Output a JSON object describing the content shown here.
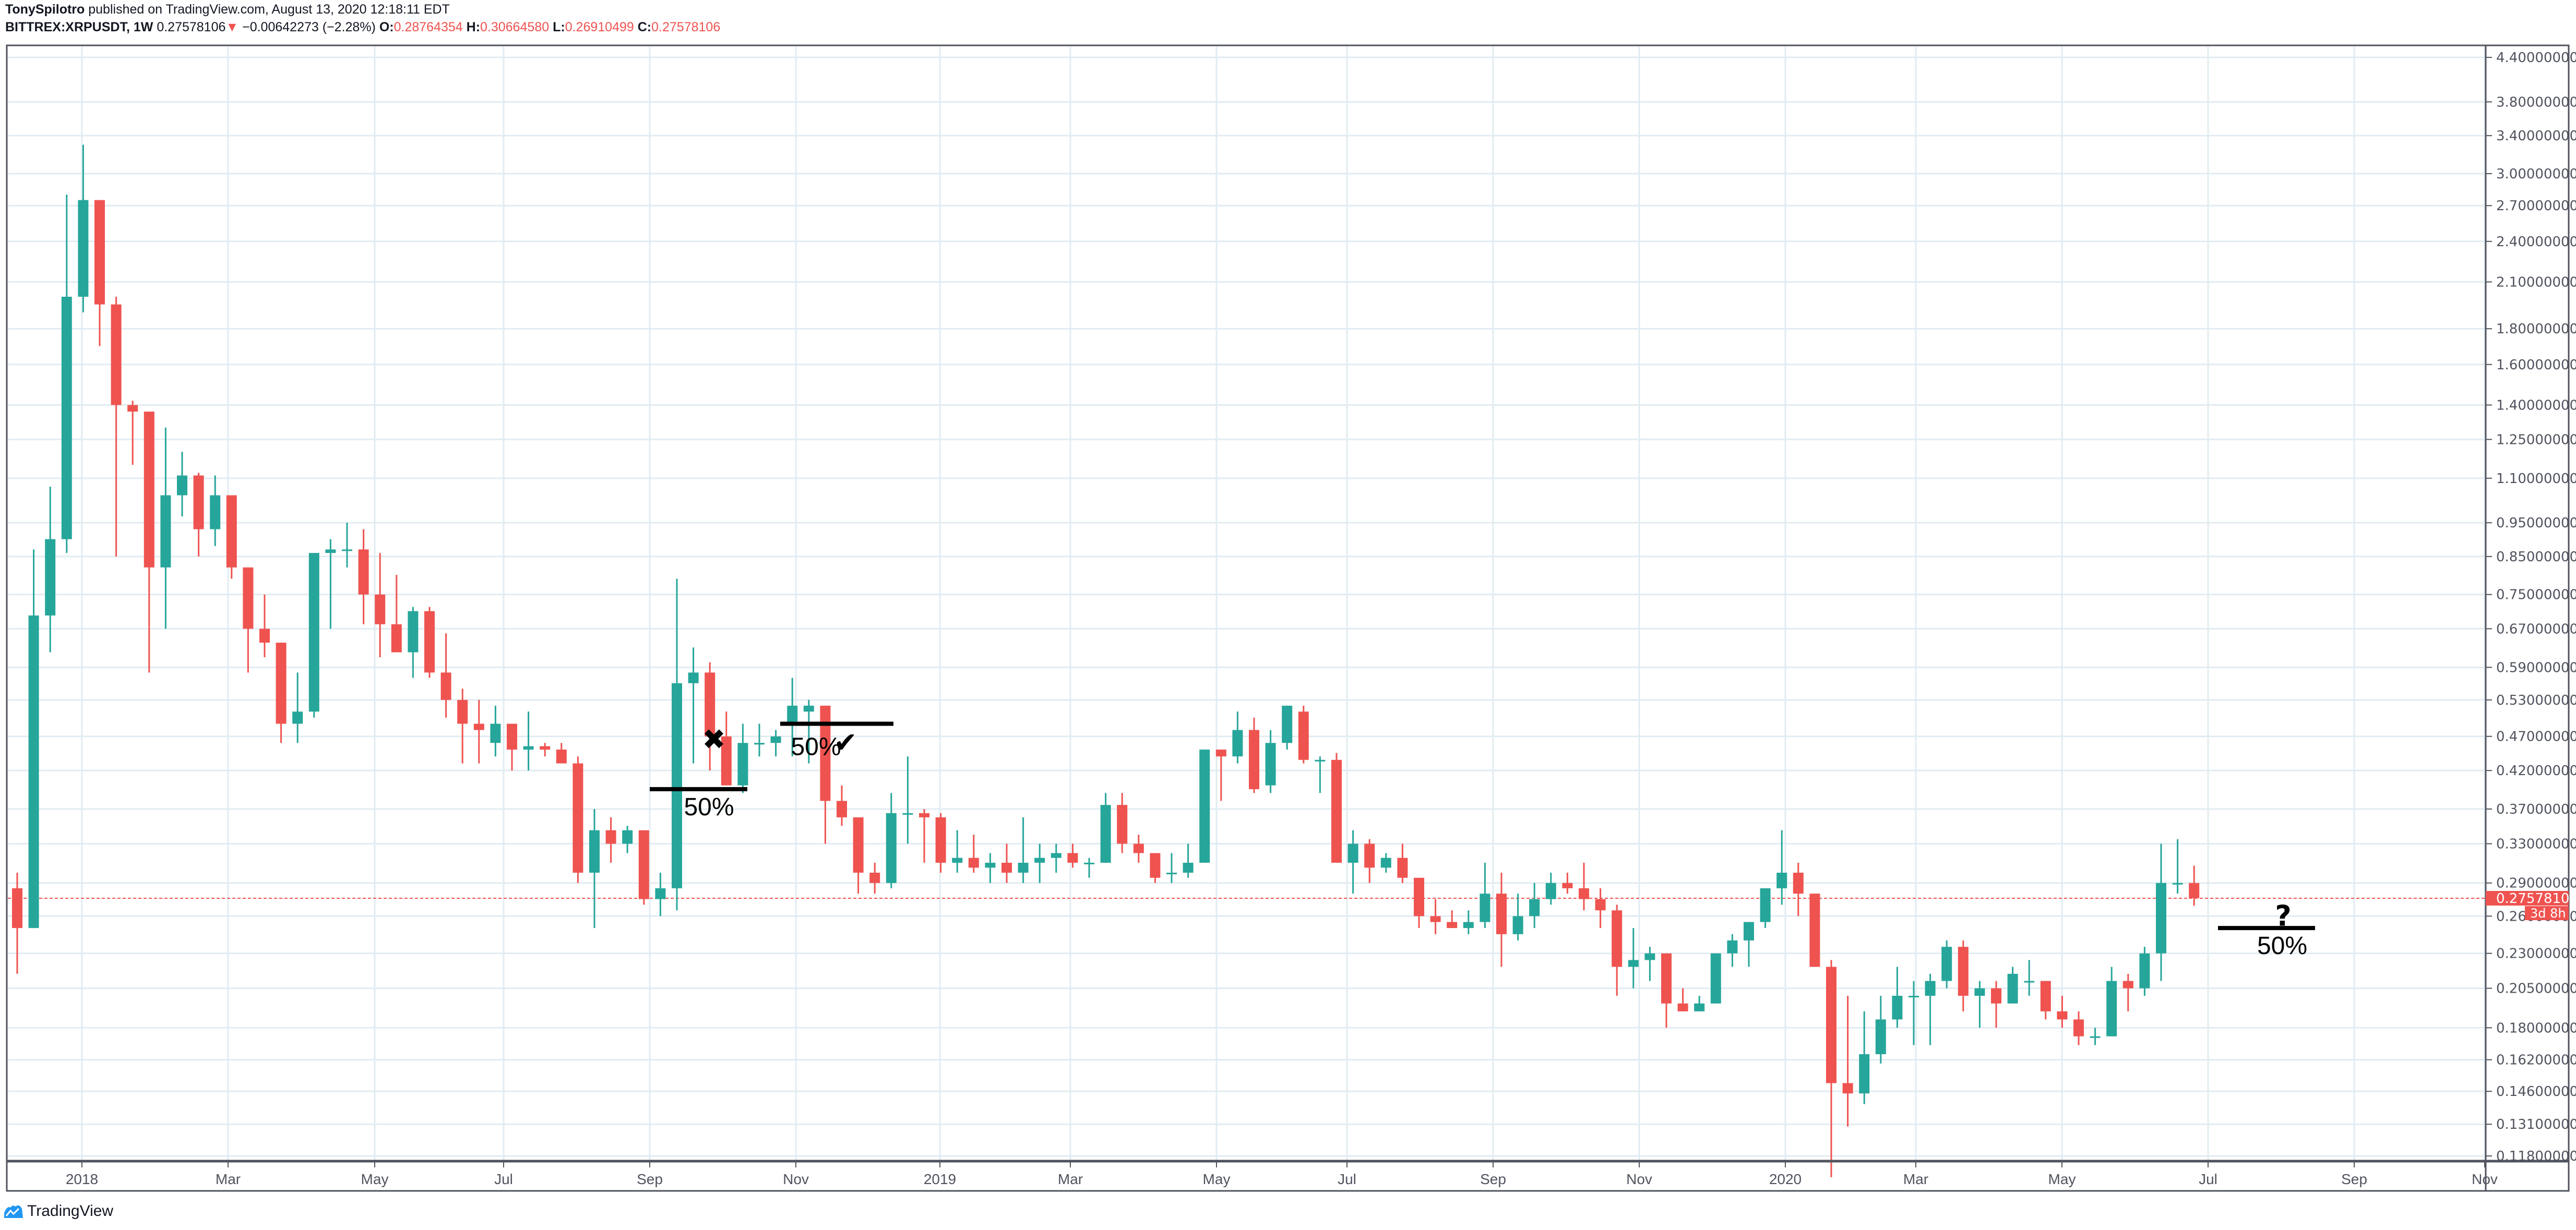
{
  "header": {
    "author": "TonySpilotro",
    "published": "published on TradingView.com, August 13, 2020 12:18:11 EDT",
    "symbol": "BITTREX:XRPUSDT, 1W",
    "last": "0.27578106",
    "change_arrow": "▼",
    "change": "−0.00642273 (−2.28%)",
    "open_label": "O:",
    "open": "0.28764354",
    "high_label": "H:",
    "high": "0.30664580",
    "low_label": "L:",
    "low": "0.26910499",
    "close_label": "C:",
    "close": "0.27578106"
  },
  "branding": {
    "logo_icon": "tradingview-logo-icon",
    "label": "TradingView"
  },
  "colors": {
    "up": "#26a69a",
    "down": "#ef5350",
    "grid": "#e1ecf2",
    "axis": "#50535e",
    "text": "#131722",
    "brand": "#2196f3"
  },
  "price_label": {
    "value": "0.27578106",
    "countdown": "3d 8h"
  },
  "chart_data": {
    "type": "candlestick",
    "title": "BITTREX:XRPUSDT, 1W",
    "scale": "log",
    "ylim": [
      0.118,
      4.4
    ],
    "y_ticks": [
      "4.40000000",
      "3.80000000",
      "3.40000000",
      "3.00000000",
      "2.70000000",
      "2.40000000",
      "2.10000000",
      "1.80000000",
      "1.60000000",
      "1.40000000",
      "1.25000000",
      "1.10000000",
      "0.95000000",
      "0.85000000",
      "0.75000000",
      "0.67000000",
      "0.59000000",
      "0.53000000",
      "0.47000000",
      "0.42000000",
      "0.37000000",
      "0.33000000",
      "0.29000000",
      "0.26000000",
      "0.23000000",
      "0.20500000",
      "0.18000000",
      "0.16200000",
      "0.14600000",
      "0.13100000",
      "0.11800000"
    ],
    "x_ticks": [
      {
        "label": "2018",
        "x": 157
      },
      {
        "label": "Mar",
        "x": 437
      },
      {
        "label": "May",
        "x": 718
      },
      {
        "label": "Jul",
        "x": 965
      },
      {
        "label": "Sep",
        "x": 1245
      },
      {
        "label": "Nov",
        "x": 1525
      },
      {
        "label": "2019",
        "x": 1801
      },
      {
        "label": "Mar",
        "x": 2051
      },
      {
        "label": "May",
        "x": 2331
      },
      {
        "label": "Jul",
        "x": 2581
      },
      {
        "label": "Sep",
        "x": 2861
      },
      {
        "label": "Nov",
        "x": 3141
      },
      {
        "label": "2020",
        "x": 3421
      },
      {
        "label": "Mar",
        "x": 3671
      },
      {
        "label": "May",
        "x": 3951
      },
      {
        "label": "Jul",
        "x": 4231
      },
      {
        "label": "Sep",
        "x": 4511
      },
      {
        "label": "Nov",
        "x": 4761
      }
    ],
    "candles": [
      [
        0.285,
        0.3,
        0.215,
        0.25
      ],
      [
        0.25,
        0.87,
        0.25,
        0.7
      ],
      [
        0.7,
        1.07,
        0.62,
        0.9
      ],
      [
        0.9,
        2.8,
        0.86,
        2.0
      ],
      [
        2.0,
        3.3,
        1.9,
        2.75
      ],
      [
        2.75,
        2.75,
        1.7,
        1.95
      ],
      [
        1.95,
        2.0,
        0.85,
        1.4
      ],
      [
        1.4,
        1.42,
        1.15,
        1.37
      ],
      [
        1.37,
        1.37,
        0.58,
        0.82
      ],
      [
        0.82,
        1.3,
        0.67,
        1.04
      ],
      [
        1.04,
        1.2,
        0.97,
        1.11
      ],
      [
        1.11,
        1.12,
        0.85,
        0.93
      ],
      [
        0.93,
        1.11,
        0.88,
        1.04
      ],
      [
        1.04,
        1.04,
        0.79,
        0.82
      ],
      [
        0.82,
        0.82,
        0.58,
        0.67
      ],
      [
        0.67,
        0.75,
        0.61,
        0.64
      ],
      [
        0.64,
        0.64,
        0.46,
        0.49
      ],
      [
        0.49,
        0.58,
        0.46,
        0.51
      ],
      [
        0.51,
        0.72,
        0.5,
        0.86
      ],
      [
        0.86,
        0.9,
        0.67,
        0.87
      ],
      [
        0.87,
        0.95,
        0.82,
        0.87
      ],
      [
        0.87,
        0.93,
        0.68,
        0.75
      ],
      [
        0.75,
        0.86,
        0.61,
        0.68
      ],
      [
        0.68,
        0.8,
        0.64,
        0.62
      ],
      [
        0.62,
        0.72,
        0.57,
        0.71
      ],
      [
        0.71,
        0.72,
        0.57,
        0.58
      ],
      [
        0.58,
        0.66,
        0.5,
        0.53
      ],
      [
        0.53,
        0.55,
        0.43,
        0.49
      ],
      [
        0.49,
        0.53,
        0.43,
        0.48
      ],
      [
        0.46,
        0.52,
        0.44,
        0.49
      ],
      [
        0.49,
        0.49,
        0.42,
        0.45
      ],
      [
        0.45,
        0.51,
        0.42,
        0.455
      ],
      [
        0.455,
        0.46,
        0.44,
        0.45
      ],
      [
        0.45,
        0.46,
        0.43,
        0.43
      ],
      [
        0.43,
        0.44,
        0.29,
        0.3
      ],
      [
        0.3,
        0.37,
        0.25,
        0.345
      ],
      [
        0.345,
        0.36,
        0.31,
        0.33
      ],
      [
        0.33,
        0.35,
        0.32,
        0.345
      ],
      [
        0.345,
        0.345,
        0.27,
        0.275
      ],
      [
        0.275,
        0.3,
        0.26,
        0.285
      ],
      [
        0.285,
        0.79,
        0.265,
        0.56
      ],
      [
        0.56,
        0.63,
        0.43,
        0.58
      ],
      [
        0.58,
        0.6,
        0.42,
        0.47
      ],
      [
        0.47,
        0.51,
        0.4,
        0.4
      ],
      [
        0.4,
        0.49,
        0.39,
        0.46
      ],
      [
        0.46,
        0.49,
        0.44,
        0.46
      ],
      [
        0.46,
        0.48,
        0.44,
        0.47
      ],
      [
        0.49,
        0.57,
        0.44,
        0.52
      ],
      [
        0.51,
        0.53,
        0.43,
        0.52
      ],
      [
        0.52,
        0.52,
        0.33,
        0.38
      ],
      [
        0.38,
        0.4,
        0.35,
        0.36
      ],
      [
        0.36,
        0.36,
        0.28,
        0.3
      ],
      [
        0.3,
        0.31,
        0.28,
        0.29
      ],
      [
        0.29,
        0.39,
        0.285,
        0.365
      ],
      [
        0.365,
        0.44,
        0.33,
        0.365
      ],
      [
        0.365,
        0.37,
        0.31,
        0.36
      ],
      [
        0.36,
        0.365,
        0.3,
        0.31
      ],
      [
        0.31,
        0.345,
        0.3,
        0.315
      ],
      [
        0.315,
        0.34,
        0.3,
        0.305
      ],
      [
        0.305,
        0.32,
        0.29,
        0.31
      ],
      [
        0.31,
        0.33,
        0.29,
        0.3
      ],
      [
        0.3,
        0.36,
        0.29,
        0.31
      ],
      [
        0.31,
        0.33,
        0.29,
        0.315
      ],
      [
        0.315,
        0.33,
        0.3,
        0.32
      ],
      [
        0.32,
        0.33,
        0.305,
        0.31
      ],
      [
        0.31,
        0.315,
        0.295,
        0.31
      ],
      [
        0.31,
        0.39,
        0.31,
        0.375
      ],
      [
        0.375,
        0.39,
        0.32,
        0.33
      ],
      [
        0.33,
        0.34,
        0.31,
        0.32
      ],
      [
        0.32,
        0.32,
        0.29,
        0.295
      ],
      [
        0.3,
        0.32,
        0.29,
        0.3
      ],
      [
        0.3,
        0.33,
        0.295,
        0.31
      ],
      [
        0.31,
        0.45,
        0.31,
        0.45
      ],
      [
        0.45,
        0.45,
        0.38,
        0.44
      ],
      [
        0.44,
        0.51,
        0.43,
        0.48
      ],
      [
        0.48,
        0.5,
        0.39,
        0.395
      ],
      [
        0.4,
        0.48,
        0.39,
        0.46
      ],
      [
        0.46,
        0.52,
        0.45,
        0.52
      ],
      [
        0.51,
        0.52,
        0.43,
        0.435
      ],
      [
        0.435,
        0.44,
        0.39,
        0.435
      ],
      [
        0.435,
        0.445,
        0.31,
        0.31
      ],
      [
        0.31,
        0.345,
        0.28,
        0.33
      ],
      [
        0.33,
        0.335,
        0.29,
        0.305
      ],
      [
        0.305,
        0.32,
        0.3,
        0.315
      ],
      [
        0.315,
        0.33,
        0.29,
        0.295
      ],
      [
        0.295,
        0.295,
        0.25,
        0.26
      ],
      [
        0.26,
        0.275,
        0.245,
        0.255
      ],
      [
        0.255,
        0.265,
        0.25,
        0.25
      ],
      [
        0.25,
        0.265,
        0.245,
        0.255
      ],
      [
        0.255,
        0.31,
        0.25,
        0.28
      ],
      [
        0.28,
        0.3,
        0.22,
        0.245
      ],
      [
        0.245,
        0.28,
        0.24,
        0.26
      ],
      [
        0.26,
        0.29,
        0.25,
        0.275
      ],
      [
        0.275,
        0.3,
        0.27,
        0.29
      ],
      [
        0.29,
        0.3,
        0.28,
        0.285
      ],
      [
        0.285,
        0.31,
        0.265,
        0.275
      ],
      [
        0.275,
        0.285,
        0.25,
        0.265
      ],
      [
        0.265,
        0.27,
        0.2,
        0.22
      ],
      [
        0.22,
        0.25,
        0.205,
        0.225
      ],
      [
        0.225,
        0.235,
        0.21,
        0.23
      ],
      [
        0.23,
        0.23,
        0.18,
        0.195
      ],
      [
        0.195,
        0.205,
        0.19,
        0.19
      ],
      [
        0.19,
        0.2,
        0.19,
        0.195
      ],
      [
        0.195,
        0.23,
        0.195,
        0.23
      ],
      [
        0.23,
        0.245,
        0.22,
        0.24
      ],
      [
        0.24,
        0.255,
        0.22,
        0.255
      ],
      [
        0.255,
        0.28,
        0.25,
        0.285
      ],
      [
        0.285,
        0.345,
        0.27,
        0.3
      ],
      [
        0.3,
        0.31,
        0.26,
        0.28
      ],
      [
        0.28,
        0.28,
        0.22,
        0.22
      ],
      [
        0.22,
        0.225,
        0.11,
        0.15
      ],
      [
        0.15,
        0.2,
        0.13,
        0.145
      ],
      [
        0.145,
        0.19,
        0.14,
        0.165
      ],
      [
        0.165,
        0.2,
        0.16,
        0.185
      ],
      [
        0.185,
        0.22,
        0.18,
        0.2
      ],
      [
        0.2,
        0.21,
        0.17,
        0.2
      ],
      [
        0.2,
        0.215,
        0.17,
        0.21
      ],
      [
        0.21,
        0.24,
        0.205,
        0.235
      ],
      [
        0.235,
        0.24,
        0.19,
        0.2
      ],
      [
        0.2,
        0.21,
        0.18,
        0.205
      ],
      [
        0.205,
        0.21,
        0.18,
        0.195
      ],
      [
        0.195,
        0.22,
        0.195,
        0.215
      ],
      [
        0.21,
        0.225,
        0.2,
        0.21
      ],
      [
        0.21,
        0.21,
        0.185,
        0.19
      ],
      [
        0.19,
        0.2,
        0.18,
        0.185
      ],
      [
        0.185,
        0.19,
        0.17,
        0.175
      ],
      [
        0.175,
        0.18,
        0.17,
        0.175
      ],
      [
        0.175,
        0.22,
        0.175,
        0.21
      ],
      [
        0.21,
        0.215,
        0.19,
        0.205
      ],
      [
        0.205,
        0.235,
        0.2,
        0.23
      ],
      [
        0.23,
        0.33,
        0.21,
        0.29
      ],
      [
        0.29,
        0.335,
        0.28,
        0.29
      ],
      [
        0.29,
        0.307,
        0.269,
        0.276
      ]
    ],
    "annotations": [
      {
        "type": "hline",
        "label": "50%",
        "x1": 1245,
        "x2": 1432,
        "price": 0.395
      },
      {
        "type": "icon",
        "label": "✖",
        "x": 1368,
        "price": 0.465
      },
      {
        "type": "hline",
        "label": "50%",
        "x1": 1495,
        "x2": 1712,
        "price": 0.49
      },
      {
        "type": "icon",
        "label": "✔",
        "x": 1620,
        "price": 0.46
      },
      {
        "type": "hline",
        "label": "50%",
        "x1": 4250,
        "x2": 4436,
        "price": 0.25
      },
      {
        "type": "icon",
        "label": "?",
        "x": 4375,
        "price": 0.26
      }
    ],
    "last_price_line": 0.27578106
  }
}
